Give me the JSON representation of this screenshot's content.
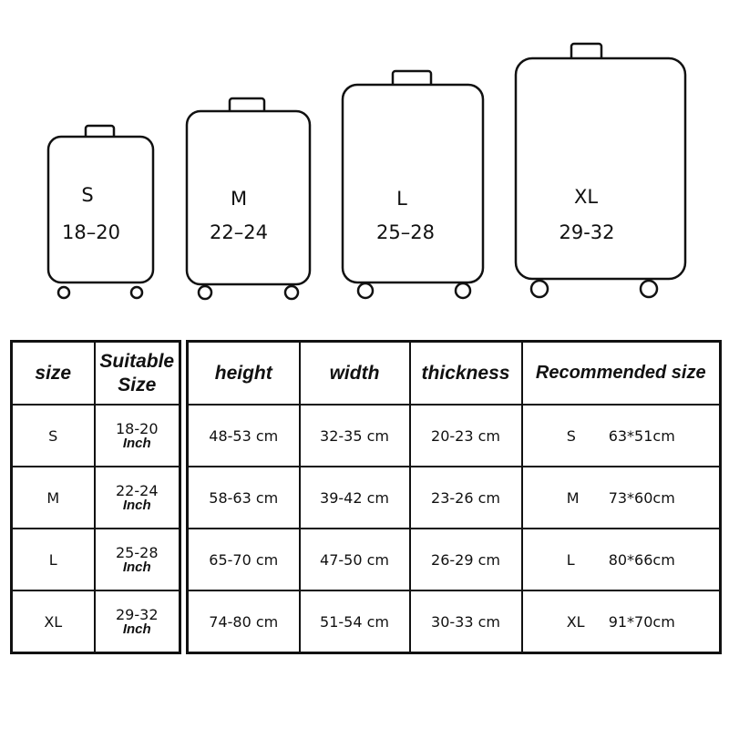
{
  "suitcases": [
    {
      "size": "S",
      "range": "18–20"
    },
    {
      "size": "M",
      "range": "22–24"
    },
    {
      "size": "L",
      "range": "25–28"
    },
    {
      "size": "XL",
      "range": "29-32"
    }
  ],
  "size_table": {
    "headers": [
      "size",
      "Suitable Size"
    ],
    "rows": [
      {
        "size": "S",
        "range": "18-20",
        "unit": "Inch"
      },
      {
        "size": "M",
        "range": "22-24",
        "unit": "Inch"
      },
      {
        "size": "L",
        "range": "25-28",
        "unit": "Inch"
      },
      {
        "size": "XL",
        "range": "29-32",
        "unit": "Inch"
      }
    ]
  },
  "dimension_table": {
    "headers": [
      "height",
      "width",
      "thickness",
      "Recommended size"
    ],
    "rows": [
      {
        "height": "48-53 cm",
        "width": "32-35 cm",
        "thickness": "20-23 cm",
        "rec_size": "S",
        "rec_dim": "63*51cm"
      },
      {
        "height": "58-63 cm",
        "width": "39-42 cm",
        "thickness": "23-26 cm",
        "rec_size": "M",
        "rec_dim": "73*60cm"
      },
      {
        "height": "65-70 cm",
        "width": "47-50 cm",
        "thickness": "26-29 cm",
        "rec_size": "L",
        "rec_dim": "80*66cm"
      },
      {
        "height": "74-80 cm",
        "width": "51-54 cm",
        "thickness": "30-33 cm",
        "rec_size": "XL",
        "rec_dim": "91*70cm"
      }
    ]
  }
}
